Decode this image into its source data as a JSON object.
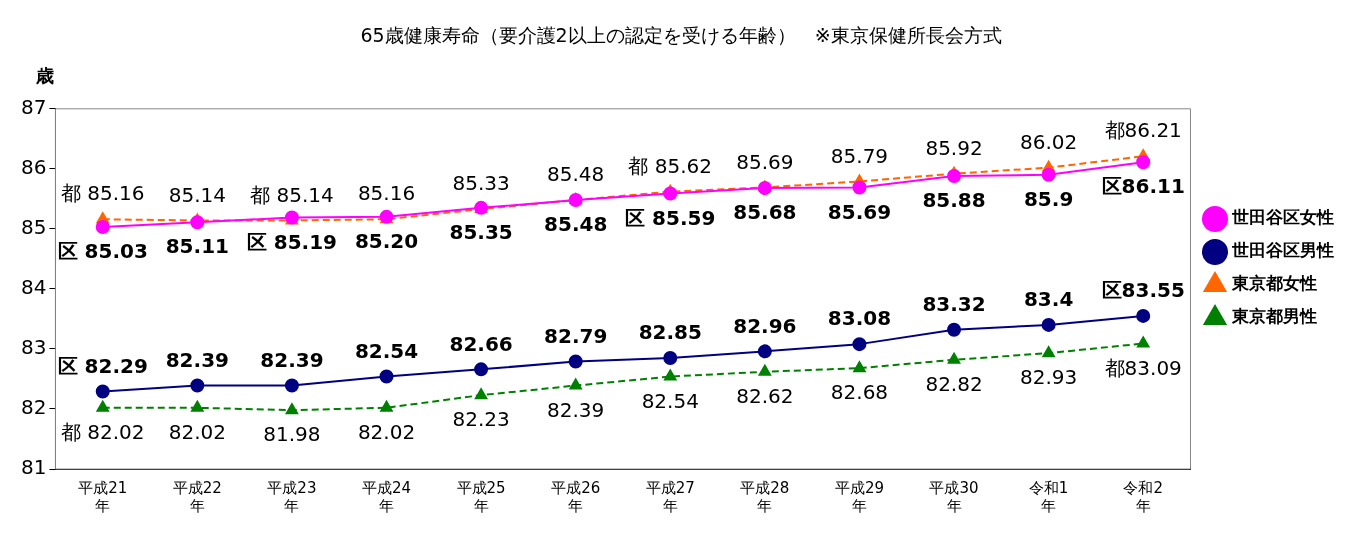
{
  "chart_data": {
    "type": "line",
    "title": "65歳健康寿命（要介護2以上の認定を受ける年齢）　※東京保健所長会方式",
    "ylabel": "歳",
    "categories": [
      "平成21年",
      "平成22年",
      "平成23年",
      "平成24年",
      "平成25年",
      "平成26年",
      "平成27年",
      "平成28年",
      "平成29年",
      "平成30年",
      "令和1年",
      "令和2年"
    ],
    "ylim": [
      81,
      87
    ],
    "yticks": [
      81,
      82,
      83,
      84,
      85,
      86,
      87
    ],
    "grid": false,
    "legend": "right",
    "series": [
      {
        "name": "世田谷区女性",
        "color": "#ff00ff",
        "marker": "circle",
        "line_style": "solid",
        "values": [
          85.03,
          85.11,
          85.19,
          85.2,
          85.35,
          85.48,
          85.59,
          85.68,
          85.69,
          85.88,
          85.9,
          86.11
        ],
        "value_labels": [
          "区 85.03",
          "85.11",
          "区 85.19",
          "85.20",
          "85.35",
          "85.48",
          "区 85.59",
          "85.68",
          "85.69",
          "85.88",
          "85.9",
          "区86.11"
        ]
      },
      {
        "name": "世田谷区男性",
        "color": "#000080",
        "marker": "circle",
        "line_style": "solid",
        "values": [
          82.29,
          82.39,
          82.39,
          82.54,
          82.66,
          82.79,
          82.85,
          82.96,
          83.08,
          83.32,
          83.4,
          83.55
        ],
        "value_labels": [
          "区 82.29",
          "82.39",
          "82.39",
          "82.54",
          "82.66",
          "82.79",
          "82.85",
          "82.96",
          "83.08",
          "83.32",
          "83.4",
          "区83.55"
        ]
      },
      {
        "name": "東京都女性",
        "color": "#ff6600",
        "marker": "triangle",
        "line_style": "dashed",
        "values": [
          85.16,
          85.14,
          85.14,
          85.16,
          85.33,
          85.48,
          85.62,
          85.69,
          85.79,
          85.92,
          86.02,
          86.21
        ],
        "value_labels": [
          "都 85.16",
          "85.14",
          "都 85.14",
          "85.16",
          "85.33",
          "85.48",
          "都 85.62",
          "85.69",
          "85.79",
          "85.92",
          "86.02",
          "都86.21"
        ]
      },
      {
        "name": "東京都男性",
        "color": "#008000",
        "marker": "triangle",
        "line_style": "dashed",
        "values": [
          82.02,
          82.02,
          81.98,
          82.02,
          82.23,
          82.39,
          82.54,
          82.62,
          82.68,
          82.82,
          82.93,
          83.09
        ],
        "value_labels": [
          "都 82.02",
          "82.02",
          "81.98",
          "82.02",
          "82.23",
          "82.39",
          "82.54",
          "82.62",
          "82.68",
          "82.82",
          "82.93",
          "都83.09"
        ]
      }
    ]
  }
}
